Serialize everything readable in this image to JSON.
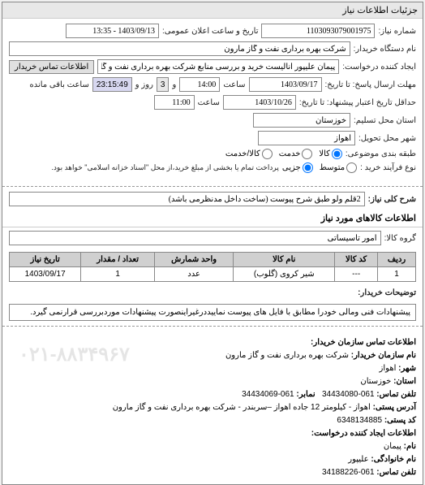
{
  "titleBar": "جزئیات اطلاعات نیاز",
  "header": {
    "requestNo_label": "شماره نیاز:",
    "requestNo": "1103093079001975",
    "announceDate_label": "تاریخ و ساعت اعلان عمومی:",
    "announceDate": "1403/09/13 - 13:35",
    "buyerDevice_label": "نام دستگاه خریدار:",
    "buyerDevice": "شرکت بهره برداری نفت و گاز مارون",
    "requester_label": "ایجاد کننده درخواست:",
    "requester": "پیمان علیپور آنالیست خرید و بررسی منابع شرکت بهره برداری نفت و گاز مارون",
    "contactBuyer_btn": "اطلاعات تماس خریدار",
    "deadlineSend_label": "مهلت ارسال پاسخ: تا تاریخ:",
    "deadlineSend_date": "1403/09/17",
    "deadlineSend_time_label": "ساعت",
    "deadlineSend_time": "14:00",
    "remainDays_label": "و",
    "remainDays": "3",
    "remainDays_suffix": "روز و",
    "remainTime": "23:15:49",
    "remainTime_suffix": "ساعت باقی مانده",
    "deadlineValid_label": "حداقل تاریخ اعتبار پیشنهاد: تا تاریخ:",
    "deadlineValid_date": "1403/10/26",
    "deadlineValid_time_label": "ساعت",
    "deadlineValid_time": "11:00",
    "province_label": "استان محل تسلیم:",
    "province": "خوزستان",
    "city_label": "شهر محل تحویل:",
    "city": "اهواز",
    "subjectCat_label": "طبقه بندی موضوعی:",
    "subjectCat_options": {
      "kala": "کالا",
      "khadamat": "خدمت",
      "kalakhadamat": "کالا/خدمت"
    },
    "subjectCat_selected": "kala",
    "buyType_label": "نوع فرآیند خرید :",
    "buyType_options": {
      "motavasset": "متوسط",
      "jozi": "جزیی"
    },
    "buyType_selected": "jozi",
    "buyType_note": "پرداخت تمام یا بخشی از مبلغ خرید،از محل \"اسناد خزانه اسلامی\" خواهد بود."
  },
  "generalDesc": {
    "label": "شرح کلی نیاز:",
    "value": "2قلم ولو طبق شرح پیوست (ساخت داخل مدنظرمی باشد)"
  },
  "goodsSection": {
    "header": "اطلاعات کالاهای مورد نیاز",
    "group_label": "گروه کالا:",
    "group_value": "امور تاسیساتی"
  },
  "table": {
    "columns": [
      "ردیف",
      "کد کالا",
      "نام کالا",
      "واحد شمارش",
      "تعداد / مقدار",
      "تاریخ نیاز"
    ],
    "rows": [
      [
        "1",
        "---",
        "شیر کروی (گلوب)",
        "عدد",
        "1",
        "1403/09/17"
      ]
    ]
  },
  "buyerRemarks": {
    "label": "توضیحات خریدار:",
    "value": "پیشنهادات فنی ومالی خودرا مطابق با فایل های پیوست نماییددرغیراینصورت پیشنهادات موردبررسی قرارنمی گیرد."
  },
  "contact": {
    "sectionHeader": "اطلاعات تماس سازمان خریدار:",
    "orgName_label": "نام سازمان خریدار:",
    "orgName": "شرکت بهره برداری نفت و گاز مارون",
    "city_label": "شهر:",
    "city": "اهواز",
    "province_label": "استان:",
    "province": "خوزستان",
    "phone_label": "تلفن تماس:",
    "phone": "061-34434080",
    "fax_label": "نمابر:",
    "fax": "061-34434069",
    "postAddr_label": "آدرس پستی:",
    "postAddr": "اهواز - کیلومتر 12 جاده اهواز –سربندر - شرکت بهره برداری نفت و گاز مارون",
    "postCode_label": "کد پستی:",
    "postCode": "6348134885",
    "requesterInfo_label": "اطلاعات ایجاد کننده درخواست:",
    "name_label": "نام:",
    "name": "پیمان",
    "famName_label": "نام خانوادگی:",
    "famName": "علیپور",
    "reqPhone_label": "تلفن تماس:",
    "reqPhone": "061-34188226"
  },
  "watermark": "۰۲۱-۸۸۳۴۹۶۷"
}
